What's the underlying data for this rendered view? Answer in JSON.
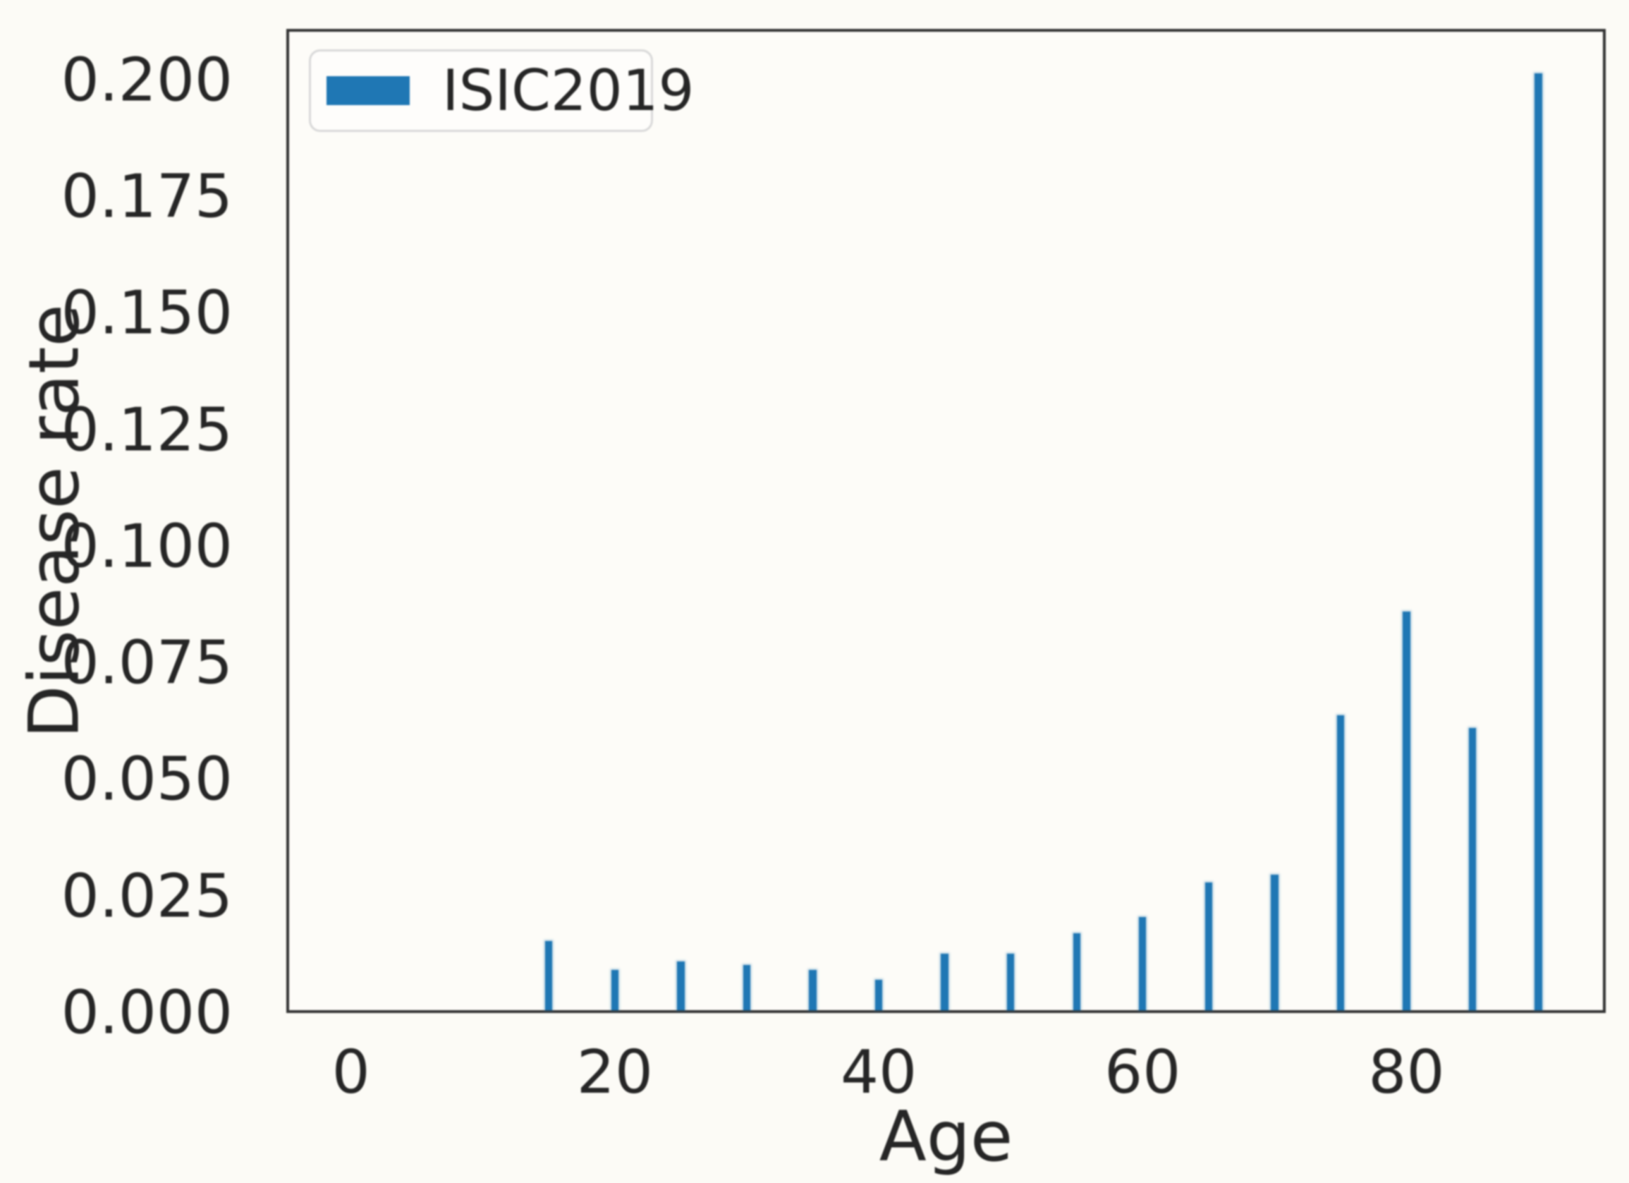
{
  "chart_data": {
    "type": "bar",
    "title": "",
    "xlabel": "Age",
    "ylabel": "Disease rate",
    "legend": {
      "entries": [
        {
          "label": "ISIC2019",
          "color": "#1f77b4"
        }
      ],
      "position": "upper left"
    },
    "x": [
      15,
      20,
      25,
      30,
      35,
      40,
      45,
      50,
      55,
      60,
      65,
      70,
      75,
      80,
      85,
      90
    ],
    "values": [
      0.0148,
      0.0086,
      0.0105,
      0.0097,
      0.0086,
      0.0065,
      0.0121,
      0.0121,
      0.0165,
      0.02,
      0.0274,
      0.029,
      0.0633,
      0.0854,
      0.0605,
      0.2008
    ],
    "series_name": "ISIC2019",
    "bar_width_units": 0.55,
    "xlim": [
      -4.9,
      95.1
    ],
    "ylim": [
      0,
      0.211
    ],
    "xticks": [
      0,
      20,
      40,
      60,
      80
    ],
    "ytick_labels": [
      "0.000",
      "0.025",
      "0.050",
      "0.075",
      "0.100",
      "0.125",
      "0.150",
      "0.175",
      "0.200"
    ],
    "grid": false
  },
  "colors": {
    "bar": "#1f77b4",
    "text": "#262626",
    "spine": "#343434",
    "legend_border": "#d9d9d9",
    "background": "#fcfbf6"
  }
}
